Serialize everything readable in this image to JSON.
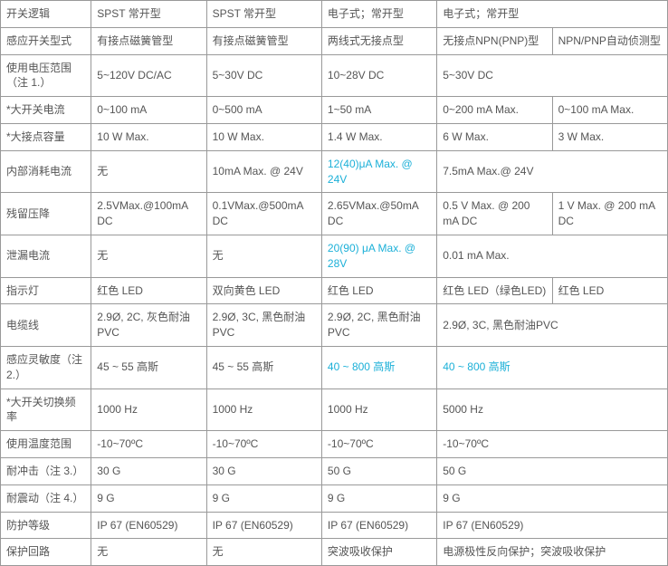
{
  "table": {
    "columns_width": {
      "label": 100,
      "data": 127
    },
    "highlight_color": "#1cb0d8",
    "rows": [
      {
        "label": "开关逻辑",
        "cells": [
          {
            "text": "SPST 常开型"
          },
          {
            "text": "SPST 常开型"
          },
          {
            "text": "电子式；常开型",
            "span": 1
          },
          {
            "text": "电子式；常开型",
            "span": 2
          }
        ]
      },
      {
        "label": "感应开关型式",
        "cells": [
          {
            "text": "有接点磁簧管型"
          },
          {
            "text": "有接点磁簧管型"
          },
          {
            "text": "两线式无接点型"
          },
          {
            "text": "无接点NPN(PNP)型"
          },
          {
            "text": "NPN/PNP自动侦测型"
          }
        ]
      },
      {
        "label": "使用电压范围（注 1.）",
        "cells": [
          {
            "text": "5~120V DC/AC"
          },
          {
            "text": "5~30V DC"
          },
          {
            "text": "10~28V DC"
          },
          {
            "text": "5~30V DC",
            "span": 2
          }
        ]
      },
      {
        "label": "*大开关电流",
        "cells": [
          {
            "text": "0~100 mA"
          },
          {
            "text": "0~500 mA"
          },
          {
            "text": "1~50 mA"
          },
          {
            "text": "0~200 mA Max."
          },
          {
            "text": "0~100 mA Max."
          }
        ]
      },
      {
        "label": "*大接点容量",
        "cells": [
          {
            "text": "10 W Max."
          },
          {
            "text": "10 W Max."
          },
          {
            "text": "1.4 W Max."
          },
          {
            "text": "6 W Max."
          },
          {
            "text": "3 W Max."
          }
        ]
      },
      {
        "label": "内部消耗电流",
        "cells": [
          {
            "text": "无"
          },
          {
            "text": "10mA Max. @ 24V"
          },
          {
            "text": "12(40)μA Max. @ 24V",
            "highlight": true
          },
          {
            "text": "7.5mA Max.@ 24V",
            "span": 2
          }
        ]
      },
      {
        "label": "残留压降",
        "cells": [
          {
            "text": "2.5VMax.@100mA DC"
          },
          {
            "text": "0.1VMax.@500mA DC"
          },
          {
            "text": "2.65VMax.@50mA DC"
          },
          {
            "text": "0.5 V Max. @ 200 mA DC"
          },
          {
            "text": "1 V Max. @ 200 mA DC"
          }
        ]
      },
      {
        "label": "泄漏电流",
        "cells": [
          {
            "text": "无"
          },
          {
            "text": "无"
          },
          {
            "text": "20(90) μA Max. @ 28V",
            "highlight": true
          },
          {
            "text": "0.01 mA Max.",
            "span": 2
          }
        ]
      },
      {
        "label": "指示灯",
        "cells": [
          {
            "text": "红色 LED"
          },
          {
            "text": "双向黄色 LED"
          },
          {
            "text": "红色 LED"
          },
          {
            "text": "红色 LED（绿色LED)"
          },
          {
            "text": "红色 LED"
          }
        ]
      },
      {
        "label": "电缆线",
        "cells": [
          {
            "text": "2.9Ø, 2C, 灰色耐油PVC"
          },
          {
            "text": "2.9Ø, 3C, 黑色耐油PVC"
          },
          {
            "text": "2.9Ø, 2C, 黑色耐油PVC"
          },
          {
            "text": "2.9Ø, 3C, 黑色耐油PVC",
            "span": 2
          }
        ]
      },
      {
        "label": "感应灵敏度（注 2.）",
        "cells": [
          {
            "text": "45 ~ 55 高斯"
          },
          {
            "text": "45 ~ 55 高斯"
          },
          {
            "text": "40 ~ 800 高斯",
            "highlight": true
          },
          {
            "text": "40 ~ 800 高斯",
            "highlight": true,
            "span": 2
          }
        ]
      },
      {
        "label": "*大开关切换频率",
        "cells": [
          {
            "text": "1000 Hz"
          },
          {
            "text": "1000 Hz"
          },
          {
            "text": "1000 Hz"
          },
          {
            "text": "5000 Hz",
            "span": 2
          }
        ]
      },
      {
        "label": "使用温度范围",
        "cells": [
          {
            "text": "-10~70ºC"
          },
          {
            "text": "-10~70ºC"
          },
          {
            "text": "-10~70ºC"
          },
          {
            "text": "-10~70ºC",
            "span": 2
          }
        ]
      },
      {
        "label": "耐冲击（注 3.）",
        "cells": [
          {
            "text": "30 G"
          },
          {
            "text": "30 G"
          },
          {
            "text": "50 G"
          },
          {
            "text": "50 G",
            "span": 2
          }
        ]
      },
      {
        "label": "耐震动（注 4.）",
        "cells": [
          {
            "text": "9 G"
          },
          {
            "text": "9 G"
          },
          {
            "text": "9 G"
          },
          {
            "text": "9 G",
            "span": 2
          }
        ]
      },
      {
        "label": "防护等级",
        "cells": [
          {
            "text": "IP 67 (EN60529)"
          },
          {
            "text": "IP 67 (EN60529)"
          },
          {
            "text": "IP 67 (EN60529)"
          },
          {
            "text": "IP 67 (EN60529)",
            "span": 2
          }
        ]
      },
      {
        "label": "保护回路",
        "cells": [
          {
            "text": "无"
          },
          {
            "text": "无"
          },
          {
            "text": "突波吸收保护"
          },
          {
            "text": "电源极性反向保护；突波吸收保护",
            "span": 2
          }
        ]
      }
    ]
  }
}
